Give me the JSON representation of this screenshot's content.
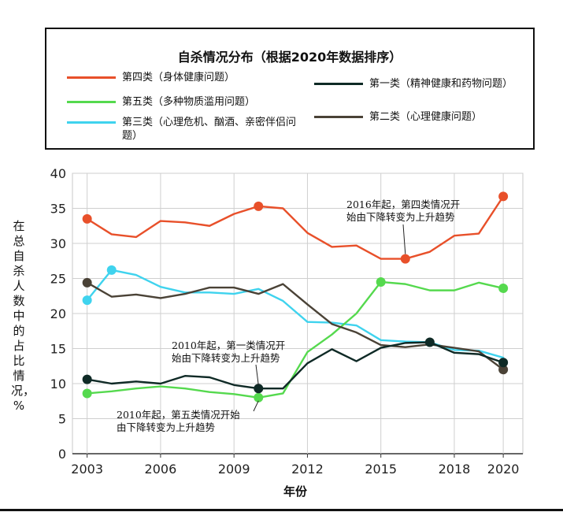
{
  "chart_data": {
    "type": "line",
    "title": "自杀情况分布（根据2020年数据排序）",
    "xlabel": "年份",
    "ylabel": "在总自杀人数中的占比情况，%",
    "x": [
      2003,
      2004,
      2005,
      2006,
      2007,
      2008,
      2009,
      2010,
      2011,
      2012,
      2013,
      2014,
      2015,
      2016,
      2017,
      2018,
      2019,
      2020
    ],
    "xticks": [
      "2003",
      "2006",
      "2009",
      "2012",
      "2015",
      "2018",
      "2020"
    ],
    "xtick_values": [
      2003,
      2006,
      2009,
      2012,
      2015,
      2018,
      2020
    ],
    "yticks": [
      "0",
      "5",
      "10",
      "15",
      "20",
      "25",
      "30",
      "35",
      "40"
    ],
    "ylim": [
      0,
      40
    ],
    "grid": true,
    "series": [
      {
        "name": "第四类（身体健康问题）",
        "color": "#e8502a",
        "values": [
          33.5,
          31.3,
          30.9,
          33.2,
          33.0,
          32.5,
          34.2,
          35.3,
          35.0,
          31.5,
          29.5,
          29.7,
          27.8,
          27.8,
          28.8,
          31.1,
          31.4,
          36.7
        ],
        "markers": [
          2003,
          2010,
          2016,
          2020
        ]
      },
      {
        "name": "第五类（多种物质滥用问题）",
        "color": "#55d94e",
        "values": [
          8.6,
          8.9,
          9.3,
          9.6,
          9.3,
          8.8,
          8.5,
          8.0,
          8.6,
          14.5,
          17.0,
          20.0,
          24.5,
          24.2,
          23.3,
          23.3,
          24.4,
          23.6
        ],
        "markers": [
          2003,
          2010,
          2015,
          2020
        ]
      },
      {
        "name": "第三类（心理危机、酗酒、亲密伴侣问题）",
        "color": "#3fd3ee",
        "values": [
          21.9,
          26.2,
          25.5,
          23.8,
          23.0,
          23.0,
          22.8,
          23.5,
          21.8,
          18.8,
          18.7,
          18.3,
          16.2,
          16.0,
          15.9,
          14.8,
          14.7,
          13.7
        ],
        "markers": [
          2003,
          2004
        ]
      },
      {
        "name": "第一类（精神健康和药物问题）",
        "color": "#0f2a26",
        "values": [
          10.6,
          10.0,
          10.3,
          10.0,
          11.1,
          10.9,
          9.8,
          9.3,
          9.3,
          12.9,
          14.9,
          13.2,
          15.1,
          15.8,
          15.9,
          14.4,
          14.2,
          13.0
        ],
        "markers": [
          2003,
          2010,
          2017,
          2020
        ]
      },
      {
        "name": "第二类（心理健康问题）",
        "color": "#4a4236",
        "values": [
          24.4,
          22.4,
          22.7,
          22.2,
          22.8,
          23.7,
          23.7,
          22.8,
          24.2,
          21.3,
          18.5,
          17.3,
          15.5,
          15.2,
          15.6,
          15.1,
          14.6,
          12.0
        ],
        "markers": [
          2003,
          2020
        ]
      }
    ],
    "annotations": [
      {
        "text": "2016年起，第四类情况开始由下降转变为上升趋势",
        "line1": "2016年起，第四类情况开",
        "line2": "始由下降转变为上升趋势",
        "target_x": 2016,
        "target_y": 27.8
      },
      {
        "text": "2010年起，第一类情况开始由下降转变为上升趋势",
        "line1": "2010年起，第一类情况开",
        "line2": "始由下降转变为上升趋势",
        "target_x": 2010,
        "target_y": 9.3
      },
      {
        "text": "2010年起，第五类情况开始由下降转变为上升趋势",
        "line1": "2010年起，第五类情况开始",
        "line2": "由下降转变为上升趋势",
        "target_x": 2010,
        "target_y": 8.0
      }
    ]
  }
}
